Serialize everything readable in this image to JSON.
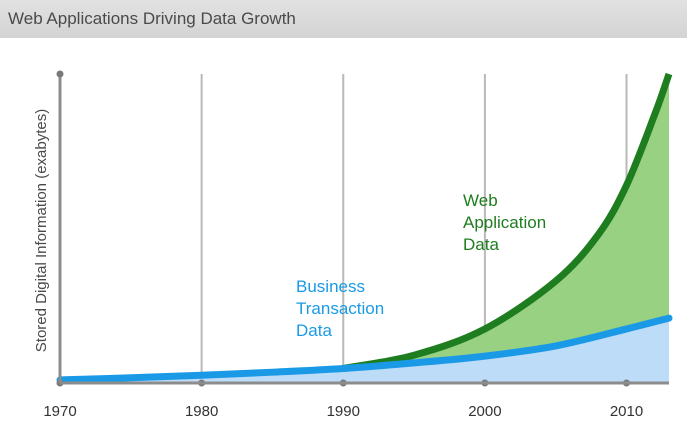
{
  "header": {
    "title": "Web Applications Driving Data Growth"
  },
  "chart_data": {
    "type": "area",
    "title": "Web Applications Driving Data Growth",
    "xlabel": "",
    "ylabel": "Stored Digital Information (exabytes)",
    "x_ticks": [
      "1970",
      "1980",
      "1990",
      "2000",
      "2010"
    ],
    "xlim": [
      1970,
      2013
    ],
    "ylim": [
      0,
      100
    ],
    "grid": "vertical",
    "series": [
      {
        "name": "Business Transaction Data",
        "color": "#1a9ae6",
        "fill": "#bcdcf7",
        "x": [
          1970,
          1975,
          1980,
          1985,
          1990,
          1995,
          2000,
          2005,
          2010,
          2013
        ],
        "values": [
          1,
          1.7,
          2.5,
          3.5,
          4.7,
          6.5,
          8.7,
          12,
          17.5,
          21
        ]
      },
      {
        "name": "Web Application Data",
        "color": "#1e7d1e",
        "fill": "#98d181",
        "x": [
          1990,
          1995,
          2000,
          2005,
          2008,
          2010,
          2012,
          2013
        ],
        "values": [
          4.7,
          9,
          17.5,
          33,
          48,
          64,
          87,
          100
        ]
      }
    ],
    "annotations": [
      {
        "text_lines": [
          "Business",
          "Transaction",
          "Data"
        ],
        "series": "Business Transaction Data"
      },
      {
        "text_lines": [
          "Web",
          "Application",
          "Data"
        ],
        "series": "Web Application Data"
      }
    ]
  }
}
